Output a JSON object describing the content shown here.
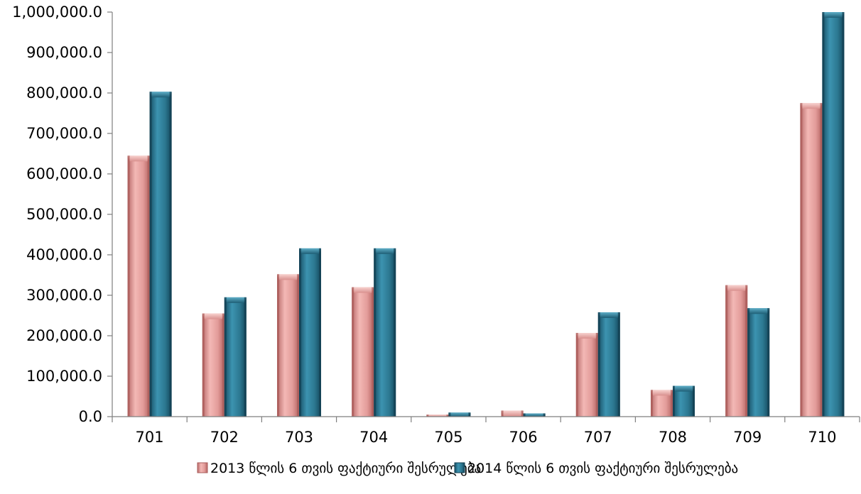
{
  "chart_data": {
    "type": "bar",
    "categories": [
      "701",
      "702",
      "703",
      "704",
      "705",
      "706",
      "707",
      "708",
      "709",
      "710"
    ],
    "series": [
      {
        "name": "2013 წლის 6 თვის ფაქტიური შესრულება",
        "color": "#E8A0A0",
        "values": [
          645000,
          255000,
          352000,
          320000,
          5000,
          15000,
          207000,
          66000,
          325000,
          775000
        ]
      },
      {
        "name": "2014 წლის 6 თვის ფაქტიური შესრულება",
        "color": "#2E7A94",
        "values": [
          803000,
          295000,
          416000,
          416000,
          10000,
          8000,
          258000,
          76000,
          268000,
          1000000
        ]
      }
    ],
    "ylim": [
      0,
      1000000
    ],
    "y_ticks": [
      0,
      100000,
      200000,
      300000,
      400000,
      500000,
      600000,
      700000,
      800000,
      900000,
      1000000
    ],
    "y_tick_labels": [
      "0.0",
      "100,000.0",
      "200,000.0",
      "300,000.0",
      "400,000.0",
      "500,000.0",
      "600,000.0",
      "700,000.0",
      "800,000.0",
      "900,000.0",
      "1,000,000.0"
    ],
    "grid": false,
    "legend_position": "bottom",
    "title": "",
    "xlabel": "",
    "ylabel": ""
  }
}
